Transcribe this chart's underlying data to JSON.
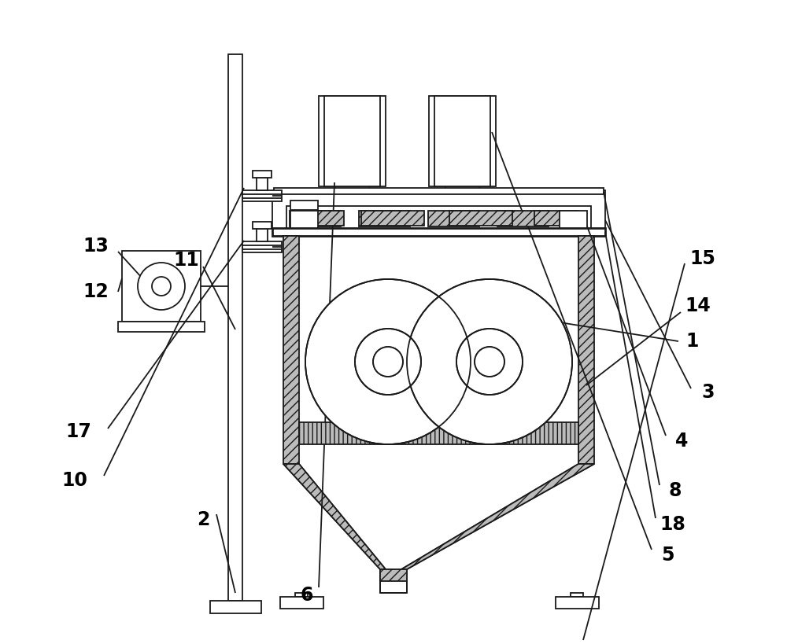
{
  "bg_color": "#ffffff",
  "line_color": "#1a1a1a",
  "lw": 1.3,
  "lw_thick": 2.0,
  "figsize": [
    10.0,
    8.19
  ],
  "dpi": 100
}
